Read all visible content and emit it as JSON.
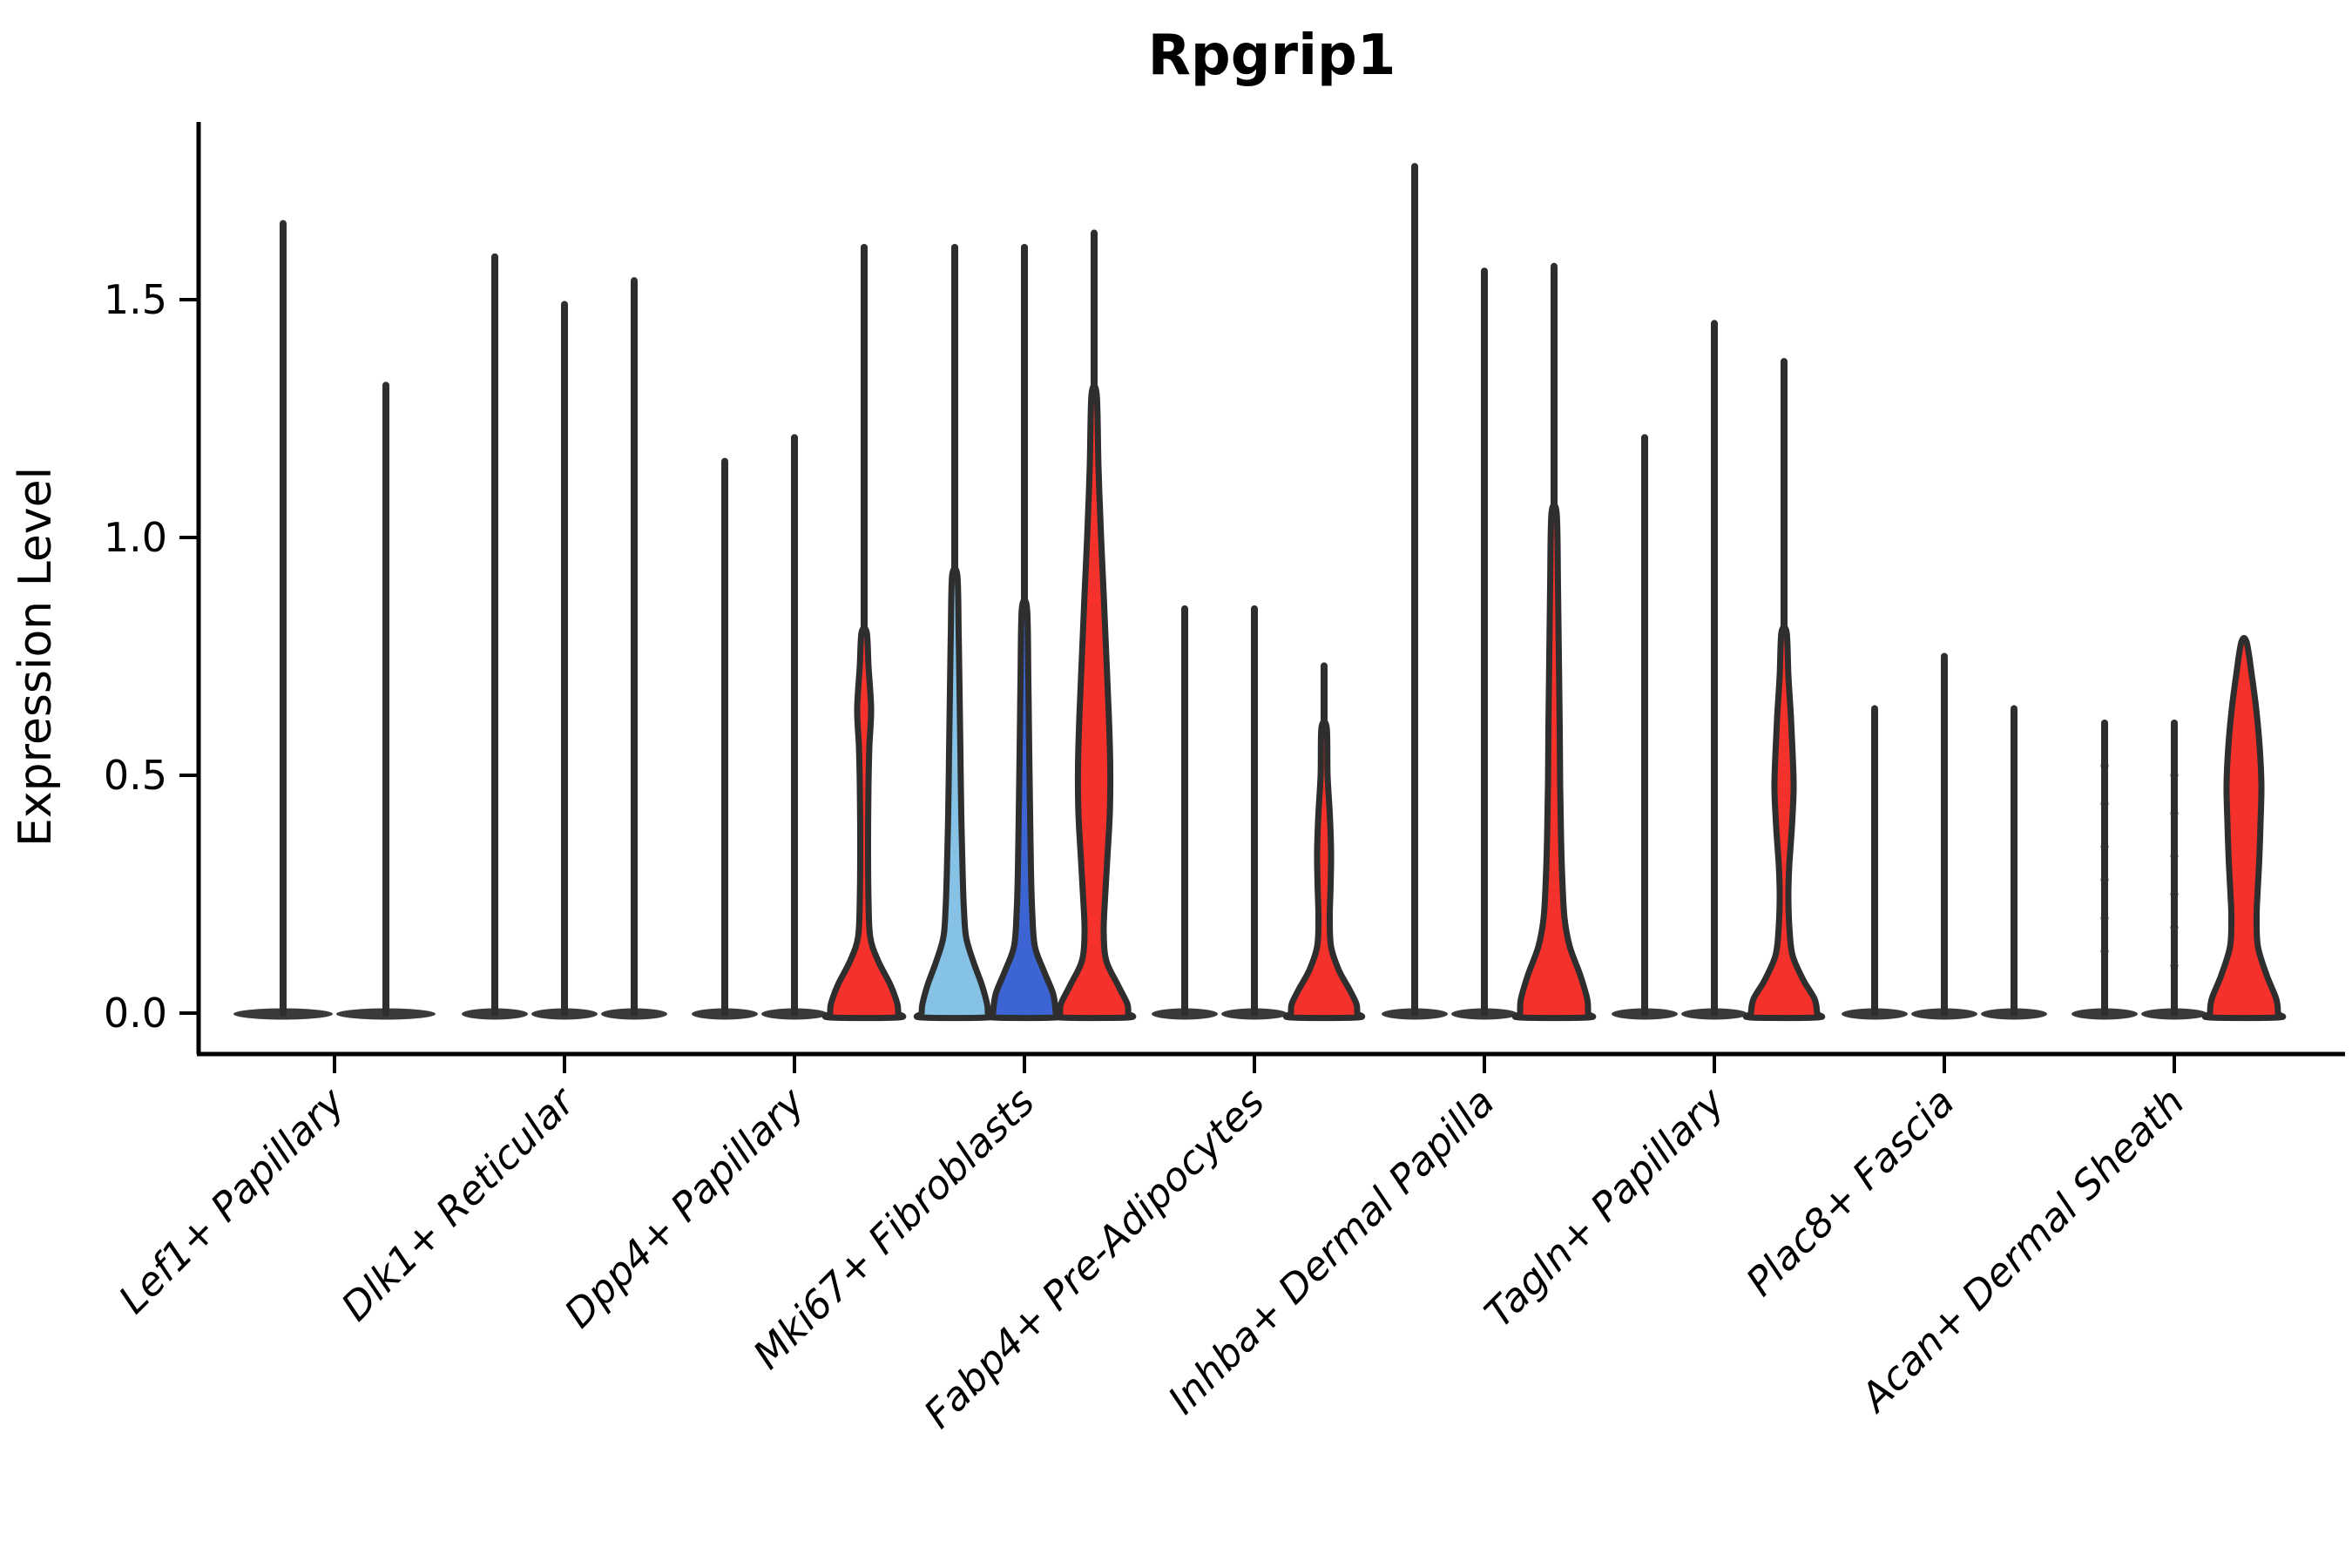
{
  "title": "Rpgrip1",
  "ylabel": "Expression Level",
  "colors": {
    "red": "#F4312B",
    "light_blue": "#85C2E6",
    "dark_blue": "#3C64D3",
    "outline": "#2E2E2E",
    "axis": "#000000",
    "background": "#FFFFFF"
  },
  "chart_data": {
    "type": "violin",
    "title": "Rpgrip1",
    "xlabel": "",
    "ylabel": "Expression Level",
    "ylim": [
      -0.09,
      1.87
    ],
    "yticks": [
      0.0,
      0.5,
      1.0,
      1.5
    ],
    "ytick_labels": [
      "0.0",
      "0.5",
      "1.0",
      "1.5"
    ],
    "grid": false,
    "legend": "none",
    "categories": [
      "Lef1+ Papillary",
      "Dlk1+ Reticular",
      "Dpp4+ Papillary",
      "Mki67+ Fibroblasts",
      "Fabp4+ Pre-Adipocytes",
      "Inhba+ Dermal Papilla",
      "Tagln+ Papillary",
      "Plac8+ Fascia",
      "Acan+ Dermal Sheath"
    ],
    "description": "Violin plot of Rpgrip1 expression per fibroblast cluster; most cells at 0 (flat dark base), thin spikes mark maximum expressing cells; colored violins show clusters with appreciable expressing fractions.",
    "groups": [
      {
        "label": "Lef1+ Papillary",
        "violins": [
          {
            "max_expression": 1.66,
            "color": "none"
          },
          {
            "max_expression": 1.32,
            "color": "none"
          }
        ]
      },
      {
        "label": "Dlk1+ Reticular",
        "violins": [
          {
            "max_expression": 1.59,
            "color": "none"
          },
          {
            "max_expression": 1.49,
            "color": "none"
          },
          {
            "max_expression": 1.54,
            "color": "none"
          }
        ]
      },
      {
        "label": "Dpp4+ Papillary",
        "violins": [
          {
            "max_expression": 1.16,
            "color": "none"
          },
          {
            "max_expression": 1.21,
            "color": "none"
          },
          {
            "max_expression": 1.61,
            "color": "red",
            "profile": [
              [
                0.8,
                3
              ],
              [
                0.73,
                5
              ],
              [
                0.64,
                8
              ],
              [
                0.56,
                6
              ],
              [
                0.48,
                5
              ],
              [
                0.36,
                4.5
              ],
              [
                0.24,
                5
              ],
              [
                0.16,
                7
              ],
              [
                0.11,
                16
              ],
              [
                0.06,
                30
              ],
              [
                0.02,
                38
              ],
              [
                0,
                39
              ]
            ]
          }
        ]
      },
      {
        "label": "Mki67+ Fibroblasts",
        "violins": [
          {
            "max_expression": 1.61,
            "color": "light_blue",
            "profile": [
              [
                0.92,
                3
              ],
              [
                0.8,
                4.5
              ],
              [
                0.68,
                5.5
              ],
              [
                0.55,
                6.5
              ],
              [
                0.42,
                7.5
              ],
              [
                0.3,
                9
              ],
              [
                0.22,
                10.5
              ],
              [
                0.16,
                13
              ],
              [
                0.11,
                21
              ],
              [
                0.06,
                31
              ],
              [
                0.02,
                37
              ],
              [
                0,
                38
              ]
            ]
          },
          {
            "max_expression": 1.61,
            "color": "dark_blue",
            "profile": [
              [
                0.85,
                3
              ],
              [
                0.7,
                4.5
              ],
              [
                0.55,
                5.5
              ],
              [
                0.42,
                6.5
              ],
              [
                0.3,
                7.5
              ],
              [
                0.21,
                9
              ],
              [
                0.14,
                12
              ],
              [
                0.09,
                22
              ],
              [
                0.04,
                33
              ],
              [
                0,
                36
              ]
            ]
          },
          {
            "max_expression": 1.64,
            "color": "red",
            "profile": [
              [
                1.3,
                3
              ],
              [
                1.15,
                5
              ],
              [
                1.0,
                8
              ],
              [
                0.88,
                11
              ],
              [
                0.75,
                14
              ],
              [
                0.62,
                17
              ],
              [
                0.52,
                18.5
              ],
              [
                0.42,
                18
              ],
              [
                0.32,
                15
              ],
              [
                0.24,
                12.5
              ],
              [
                0.17,
                11
              ],
              [
                0.11,
                14
              ],
              [
                0.06,
                27
              ],
              [
                0.02,
                38
              ],
              [
                0,
                39
              ]
            ]
          }
        ]
      },
      {
        "label": "Fabp4+ Pre-Adipocytes",
        "violins": [
          {
            "max_expression": 0.85,
            "color": "none"
          },
          {
            "max_expression": 0.85,
            "color": "none"
          },
          {
            "max_expression": 0.73,
            "color": "red",
            "profile": [
              [
                0.6,
                3
              ],
              [
                0.5,
                4
              ],
              [
                0.42,
                6.5
              ],
              [
                0.34,
                8
              ],
              [
                0.27,
                7.5
              ],
              [
                0.2,
                6.5
              ],
              [
                0.14,
                8
              ],
              [
                0.09,
                17
              ],
              [
                0.05,
                29
              ],
              [
                0.02,
                37
              ],
              [
                0,
                38
              ]
            ]
          }
        ]
      },
      {
        "label": "Inhba+ Dermal Papilla",
        "violins": [
          {
            "max_expression": 1.78,
            "color": "none"
          },
          {
            "max_expression": 1.56,
            "color": "none"
          },
          {
            "max_expression": 1.57,
            "color": "red",
            "profile": [
              [
                1.05,
                3
              ],
              [
                0.9,
                4.5
              ],
              [
                0.75,
                5.5
              ],
              [
                0.6,
                6.5
              ],
              [
                0.48,
                7
              ],
              [
                0.37,
                8
              ],
              [
                0.28,
                9.5
              ],
              [
                0.2,
                12
              ],
              [
                0.14,
                18
              ],
              [
                0.08,
                30
              ],
              [
                0.03,
                38
              ],
              [
                0,
                39
              ]
            ]
          }
        ]
      },
      {
        "label": "Tagln+ Papillary",
        "violins": [
          {
            "max_expression": 1.21,
            "color": "none"
          },
          {
            "max_expression": 1.45,
            "color": "none"
          },
          {
            "max_expression": 1.37,
            "color": "red",
            "profile": [
              [
                0.8,
                3
              ],
              [
                0.71,
                5
              ],
              [
                0.62,
                8
              ],
              [
                0.54,
                10
              ],
              [
                0.47,
                11
              ],
              [
                0.39,
                9
              ],
              [
                0.31,
                6
              ],
              [
                0.24,
                5
              ],
              [
                0.17,
                6.5
              ],
              [
                0.12,
                10
              ],
              [
                0.07,
                22
              ],
              [
                0.03,
                35
              ],
              [
                0,
                38
              ]
            ]
          }
        ]
      },
      {
        "label": "Plac8+ Fascia",
        "violins": [
          {
            "max_expression": 0.64,
            "color": "none"
          },
          {
            "max_expression": 0.75,
            "color": "none"
          },
          {
            "max_expression": 0.64,
            "color": "none"
          }
        ]
      },
      {
        "label": "Acan+ Dermal Sheath",
        "violins": [
          {
            "max_expression": 0.61,
            "color": "none",
            "dot_values": [
              0.13,
              0.2,
              0.28,
              0.35,
              0.44,
              0.52
            ]
          },
          {
            "max_expression": 0.61,
            "color": "none",
            "dot_values": [
              0.1,
              0.18,
              0.25,
              0.33,
              0.42,
              0.5
            ]
          },
          {
            "max_expression": 0.78,
            "color": "red",
            "profile": [
              [
                0.78,
                3
              ],
              [
                0.71,
                9
              ],
              [
                0.64,
                14
              ],
              [
                0.56,
                18
              ],
              [
                0.48,
                20
              ],
              [
                0.4,
                19
              ],
              [
                0.32,
                17.5
              ],
              [
                0.25,
                15.5
              ],
              [
                0.2,
                14.5
              ],
              [
                0.14,
                16
              ],
              [
                0.08,
                26
              ],
              [
                0.03,
                37
              ],
              [
                0,
                39
              ]
            ]
          }
        ]
      }
    ]
  }
}
